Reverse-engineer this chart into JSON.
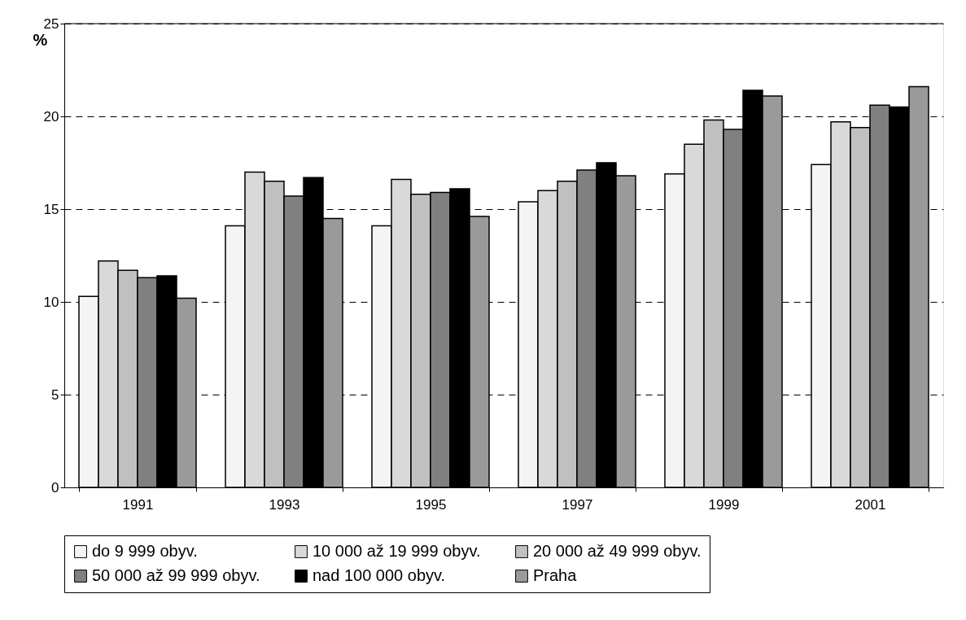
{
  "chart_data": {
    "type": "bar",
    "ylabel": "%",
    "categories": [
      "1991",
      "1993",
      "1995",
      "1997",
      "1999",
      "2001"
    ],
    "series": [
      {
        "name": "do 9 999 obyv.",
        "color": "#f4f4f4",
        "values": [
          10.3,
          14.1,
          14.1,
          15.4,
          16.9,
          17.4
        ]
      },
      {
        "name": "10 000 až 19 999 obyv.",
        "color": "#d9d9d9",
        "values": [
          12.2,
          17.0,
          16.6,
          16.0,
          18.5,
          19.7
        ]
      },
      {
        "name": "20 000 až 49 999 obyv.",
        "color": "#c0c0c0",
        "values": [
          11.7,
          16.5,
          15.8,
          16.5,
          19.8,
          19.4
        ]
      },
      {
        "name": "50 000 až 99 999 obyv.",
        "color": "#808080",
        "values": [
          11.3,
          15.7,
          15.9,
          17.1,
          19.3,
          20.6
        ]
      },
      {
        "name": "nad 100 000 obyv.",
        "color": "#000000",
        "values": [
          11.4,
          16.7,
          16.1,
          17.5,
          21.4,
          20.5
        ]
      },
      {
        "name": "Praha",
        "color": "#9a9a9a",
        "values": [
          10.2,
          14.5,
          14.6,
          16.8,
          21.1,
          21.6
        ]
      }
    ],
    "ylim": [
      0,
      25
    ],
    "yticks": [
      0,
      5,
      10,
      15,
      20,
      25
    ],
    "grid": "y",
    "legend": "bottom"
  }
}
